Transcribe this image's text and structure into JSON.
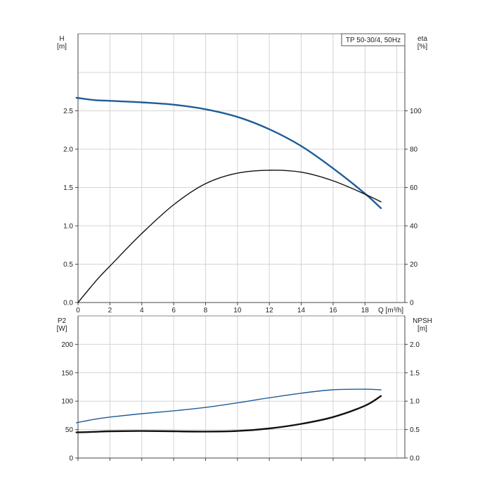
{
  "chart_data": [
    {
      "type": "line",
      "title": "TP 50-30/4, 50Hz",
      "xlabel": "Q [m³/h]",
      "ylabel_left": [
        "H",
        "[m]"
      ],
      "ylabel_right": [
        "eta",
        "[%]"
      ],
      "xlim": [
        0,
        20.5
      ],
      "ylim_left": [
        0,
        3.0
      ],
      "ylim_right": [
        0,
        120
      ],
      "x_ticks": [
        0,
        2,
        4,
        6,
        8,
        10,
        12,
        14,
        16,
        18
      ],
      "x_tick_labels": [
        "0",
        "2",
        "4",
        "6",
        "8",
        "10",
        "12",
        "14",
        "16",
        "18"
      ],
      "y_left_ticks": [
        0,
        0.5,
        1.0,
        1.5,
        2.0,
        2.5
      ],
      "y_left_tick_labels": [
        "0.0",
        "0.5",
        "1.0",
        "1.5",
        "2.0",
        "2.5"
      ],
      "y_right_ticks": [
        0,
        20,
        40,
        60,
        80,
        100
      ],
      "y_right_tick_labels": [
        "0",
        "20",
        "40",
        "60",
        "80",
        "100"
      ],
      "grid": true,
      "series": [
        {
          "axis": "left",
          "color": "#1f5c99",
          "style": "thick",
          "x": [
            -0.1,
            1.0,
            2,
            4,
            6,
            8,
            10,
            12,
            14,
            16,
            18,
            19
          ],
          "values": [
            2.67,
            2.64,
            2.63,
            2.61,
            2.58,
            2.52,
            2.42,
            2.26,
            2.04,
            1.75,
            1.42,
            1.23
          ]
        },
        {
          "axis": "right",
          "color": "#111111",
          "style": "normal",
          "x": [
            0,
            1.2,
            2,
            4,
            6,
            8,
            10,
            12,
            14,
            16,
            18,
            19
          ],
          "values": [
            0,
            12,
            19,
            36,
            51,
            62,
            67.5,
            69,
            68,
            63.5,
            56.5,
            52.5
          ]
        }
      ]
    },
    {
      "type": "line",
      "title": "",
      "xlabel": "",
      "ylabel_left": [
        "P2",
        "[W]"
      ],
      "ylabel_right": [
        "NPSH",
        "[m]"
      ],
      "xlim": [
        0,
        20.5
      ],
      "ylim_left": [
        0,
        250
      ],
      "ylim_right": [
        0,
        2.5
      ],
      "x_ticks": [
        0,
        2,
        4,
        6,
        8,
        10,
        12,
        14,
        16,
        18
      ],
      "x_tick_labels": [],
      "y_left_ticks": [
        0,
        50,
        100,
        150,
        200
      ],
      "y_left_tick_labels": [
        "0",
        "50",
        "100",
        "150",
        "200"
      ],
      "y_right_ticks": [
        0,
        0.5,
        1.0,
        1.5,
        2.0
      ],
      "y_right_tick_labels": [
        "0.0",
        "0.5",
        "1.0",
        "1.5",
        "2.0"
      ],
      "grid": true,
      "series": [
        {
          "axis": "left",
          "color": "#1f5c99",
          "style": "normal",
          "x": [
            -0.1,
            1,
            2,
            4,
            6,
            8,
            10,
            12,
            14,
            16,
            18,
            19
          ],
          "values": [
            62,
            68,
            72,
            78,
            83,
            89,
            97,
            106,
            114,
            120,
            121,
            120
          ]
        },
        {
          "axis": "left",
          "color": "#111111",
          "style": "thick",
          "x": [
            -0.1,
            1,
            2,
            4,
            6,
            8,
            10,
            12,
            14,
            16,
            18,
            19
          ],
          "values": [
            45,
            46,
            47,
            47.5,
            47,
            46.5,
            47.5,
            52,
            60,
            72,
            92,
            109
          ]
        }
      ]
    }
  ]
}
